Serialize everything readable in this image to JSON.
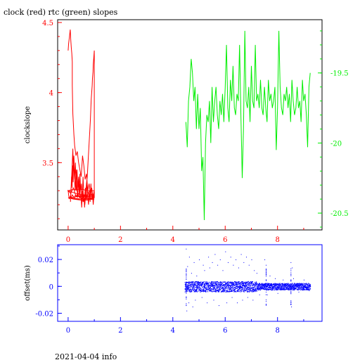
{
  "title": "clock (red) rtc (green) slopes",
  "footer_text": "2021-04-04 info",
  "colors": {
    "clock": "#ff0000",
    "rtc": "#00ee00",
    "offset": "#0000ff",
    "frame": "#000000"
  },
  "chart_data": [
    {
      "type": "line",
      "title": "clock (red) rtc (green) slopes",
      "xlabel": "",
      "ylabel": "clockslope",
      "xlim": [
        -0.4,
        9.7
      ],
      "ylim": [
        3.02,
        4.52
      ],
      "xticks": [
        "0",
        "2",
        "4",
        "6",
        "8"
      ],
      "yticks_left": [
        "3.5",
        "4",
        "4.5"
      ],
      "y2lim": [
        -20.62,
        -19.12
      ],
      "yticks_right": [
        "-19.5",
        "-20",
        "-20.5"
      ],
      "grid": false,
      "series": [
        {
          "name": "clock",
          "color": "#ff0000",
          "axis": "left",
          "x": [
            0.0,
            0.02,
            0.05,
            0.08,
            0.1,
            0.12,
            0.14,
            0.16,
            0.16,
            0.16,
            0.17,
            0.18,
            0.2,
            0.22,
            0.25,
            0.3,
            0.35,
            0.4,
            0.45,
            0.5,
            0.55,
            0.6,
            0.65,
            0.7,
            0.75,
            0.8,
            0.85,
            0.9,
            0.95,
            1.0,
            0.8,
            0.5,
            0.2,
            0.0,
            0.3,
            0.6,
            0.9,
            1.0,
            0.7,
            0.4,
            0.1,
            0.0,
            0.4,
            0.8,
            1.0,
            0.6,
            0.2,
            0.0,
            0.5,
            1.0,
            1.0,
            0.98,
            0.96,
            0.95,
            0.93,
            0.92,
            0.9,
            0.88,
            0.87,
            0.85,
            0.82,
            0.79,
            0.76,
            0.73,
            0.7,
            0.67,
            0.64,
            0.61,
            0.58,
            0.55,
            0.52,
            0.49,
            0.46,
            0.43,
            0.4,
            0.37,
            0.34,
            0.31,
            0.28,
            0.25,
            0.22,
            0.2,
            0.18,
            0.16,
            0.14,
            0.12,
            0.1,
            0.09,
            0.11,
            0.13,
            0.15,
            0.17,
            0.19,
            0.21,
            0.24,
            0.27,
            0.3,
            0.33,
            0.36,
            0.39,
            0.42,
            0.45,
            0.48,
            0.51,
            0.54,
            0.57,
            0.6,
            0.63,
            0.66,
            0.69,
            0.72,
            0.75,
            0.78,
            0.81,
            0.84,
            0.87,
            0.9,
            0.93,
            0.96,
            1.0,
            0.96,
            0.92,
            0.88,
            0.84,
            0.8,
            0.76,
            0.72,
            0.68,
            0.64,
            0.6,
            0.56,
            0.52,
            0.48,
            0.44,
            0.4,
            0.36,
            0.32,
            0.28,
            0.24,
            0.2,
            0.16,
            0.12,
            0.08,
            0.04,
            0.0,
            0.1,
            0.2,
            0.3,
            0.4,
            0.5,
            0.6,
            0.7,
            0.8,
            0.9,
            1.0
          ],
          "y": [
            4.3,
            4.35,
            4.4,
            4.45,
            4.38,
            4.32,
            4.28,
            4.22,
            4.15,
            4.05,
            3.95,
            3.85,
            3.78,
            3.7,
            3.62,
            3.55,
            3.58,
            3.5,
            3.45,
            3.4,
            3.55,
            3.48,
            3.38,
            3.42,
            3.3,
            3.35,
            3.28,
            3.32,
            3.25,
            3.3,
            3.3,
            3.31,
            3.31,
            3.3,
            3.28,
            3.27,
            3.27,
            3.26,
            3.26,
            3.26,
            3.25,
            3.25,
            3.24,
            3.24,
            3.24,
            3.23,
            3.24,
            3.25,
            3.24,
            3.25,
            4.3,
            4.25,
            4.2,
            4.15,
            4.1,
            4.05,
            4.0,
            3.95,
            3.9,
            3.8,
            3.7,
            3.6,
            3.5,
            3.4,
            3.35,
            3.28,
            3.2,
            3.25,
            3.22,
            3.3,
            3.18,
            3.28,
            3.35,
            3.25,
            3.4,
            3.32,
            3.45,
            3.3,
            3.5,
            3.38,
            3.55,
            3.45,
            3.6,
            3.5,
            3.42,
            3.35,
            3.28,
            3.22,
            3.3,
            3.4,
            3.32,
            3.48,
            3.36,
            3.52,
            3.4,
            3.3,
            3.45,
            3.35,
            3.25,
            3.38,
            3.28,
            3.42,
            3.3,
            3.35,
            3.22,
            3.4,
            3.28,
            3.18,
            3.32,
            3.24,
            3.38,
            3.26,
            3.2,
            3.3,
            3.22,
            3.35,
            3.25,
            3.28,
            3.2,
            3.3,
            3.27,
            3.25,
            3.28,
            3.26,
            3.27,
            3.29,
            3.26,
            3.24,
            3.27,
            3.25,
            3.28,
            3.26,
            3.27,
            3.25,
            3.26,
            3.28,
            3.26,
            3.27,
            3.25,
            3.26,
            3.27,
            3.25,
            3.26,
            3.24,
            3.3,
            3.28,
            3.32,
            3.26,
            3.28,
            3.24,
            3.27,
            3.25,
            3.26,
            3.24,
            3.25
          ]
        },
        {
          "name": "rtc",
          "color": "#00ee00",
          "axis": "right",
          "x": [
            4.5,
            4.55,
            4.6,
            4.65,
            4.7,
            4.75,
            4.8,
            4.85,
            4.9,
            4.95,
            5.0,
            5.05,
            5.1,
            5.15,
            5.2,
            5.25,
            5.3,
            5.35,
            5.4,
            5.45,
            5.5,
            5.55,
            5.6,
            5.65,
            5.7,
            5.75,
            5.8,
            5.85,
            5.9,
            5.95,
            6.0,
            6.05,
            6.1,
            6.15,
            6.2,
            6.25,
            6.3,
            6.35,
            6.4,
            6.45,
            6.5,
            6.55,
            6.6,
            6.65,
            6.7,
            6.75,
            6.8,
            6.85,
            6.9,
            6.95,
            7.0,
            7.05,
            7.1,
            7.15,
            7.2,
            7.25,
            7.3,
            7.35,
            7.4,
            7.45,
            7.5,
            7.55,
            7.6,
            7.65,
            7.7,
            7.75,
            7.8,
            7.85,
            7.9,
            7.95,
            8.0,
            8.05,
            8.1,
            8.15,
            8.2,
            8.25,
            8.3,
            8.35,
            8.4,
            8.45,
            8.5,
            8.55,
            8.6,
            8.65,
            8.7,
            8.75,
            8.8,
            8.85,
            8.9,
            8.95,
            9.0,
            9.05,
            9.1,
            9.15,
            9.2,
            9.25
          ],
          "y": [
            -19.85,
            -20.03,
            -19.7,
            -19.6,
            -19.4,
            -19.5,
            -19.7,
            -19.6,
            -19.9,
            -19.65,
            -19.9,
            -19.75,
            -20.2,
            -20.1,
            -20.55,
            -20.0,
            -19.8,
            -19.85,
            -19.7,
            -20.0,
            -19.6,
            -19.85,
            -19.7,
            -19.6,
            -19.8,
            -19.9,
            -19.7,
            -19.8,
            -19.65,
            -19.85,
            -19.6,
            -19.3,
            -19.75,
            -19.85,
            -19.55,
            -19.7,
            -19.45,
            -19.75,
            -19.8,
            -19.65,
            -19.7,
            -19.3,
            -19.8,
            -20.25,
            -19.9,
            -19.2,
            -19.7,
            -19.75,
            -19.6,
            -19.85,
            -19.45,
            -19.7,
            -19.75,
            -19.3,
            -19.7,
            -19.65,
            -19.75,
            -19.55,
            -19.75,
            -19.8,
            -19.6,
            -19.75,
            -19.85,
            -19.55,
            -19.7,
            -19.65,
            -19.75,
            -19.7,
            -19.6,
            -20.05,
            -19.75,
            -19.2,
            -19.6,
            -19.75,
            -19.8,
            -19.65,
            -19.7,
            -19.6,
            -19.75,
            -19.65,
            -19.85,
            -19.55,
            -19.7,
            -19.8,
            -19.75,
            -19.6,
            -19.75,
            -19.7,
            -19.85,
            -19.55,
            -19.7,
            -19.65,
            -19.8,
            -20.03,
            -19.6,
            -19.5
          ]
        }
      ]
    },
    {
      "type": "scatter",
      "ylabel": "offset(ms)",
      "xlabel": "",
      "xlim": [
        -0.4,
        9.7
      ],
      "ylim": [
        -0.026,
        0.031
      ],
      "xticks": [
        "0",
        "2",
        "4",
        "6",
        "8"
      ],
      "yticks": [
        "0.02",
        "0",
        "-0.02"
      ],
      "footer": "2021-04-04 info",
      "series": [
        {
          "name": "offset",
          "color": "#0000ff",
          "x_range": [
            4.45,
            9.25
          ],
          "band": [
            -0.003,
            0.003
          ],
          "outlier_x": [
            4.5,
            4.52,
            4.55,
            4.6,
            4.62,
            4.7,
            4.75,
            4.8,
            4.85,
            4.9,
            5.0,
            5.1,
            5.15,
            5.2,
            5.3,
            5.35,
            5.4,
            5.5,
            5.55,
            5.6,
            5.7,
            5.75,
            5.8,
            5.9,
            6.0,
            6.05,
            6.1,
            6.2,
            6.25,
            6.3,
            6.4,
            6.45,
            6.5,
            6.6,
            6.65,
            6.7,
            6.8,
            6.85,
            6.9,
            7.0,
            7.05,
            7.1,
            7.2,
            7.3,
            7.5,
            7.55,
            7.6,
            7.7,
            7.9,
            8.0,
            8.2,
            8.5,
            8.52,
            8.55,
            8.6,
            8.8,
            9.0,
            9.2
          ],
          "outlier_y": [
            0.028,
            -0.018,
            0.015,
            -0.012,
            0.022,
            0.01,
            -0.015,
            0.018,
            -0.01,
            0.008,
            0.02,
            -0.008,
            0.016,
            0.012,
            -0.012,
            0.022,
            0.014,
            0.018,
            -0.01,
            0.024,
            0.016,
            -0.014,
            0.02,
            0.012,
            0.026,
            -0.012,
            0.018,
            0.022,
            -0.008,
            0.016,
            0.02,
            -0.012,
            0.014,
            0.024,
            -0.01,
            0.018,
            0.022,
            -0.008,
            0.016,
            0.02,
            -0.01,
            0.012,
            0.01,
            -0.006,
            0.02,
            0.016,
            -0.006,
            0.008,
            0.006,
            -0.005,
            0.005,
            0.018,
            -0.015,
            0.014,
            0.006,
            -0.004,
            0.005,
            -0.003
          ]
        }
      ]
    }
  ]
}
